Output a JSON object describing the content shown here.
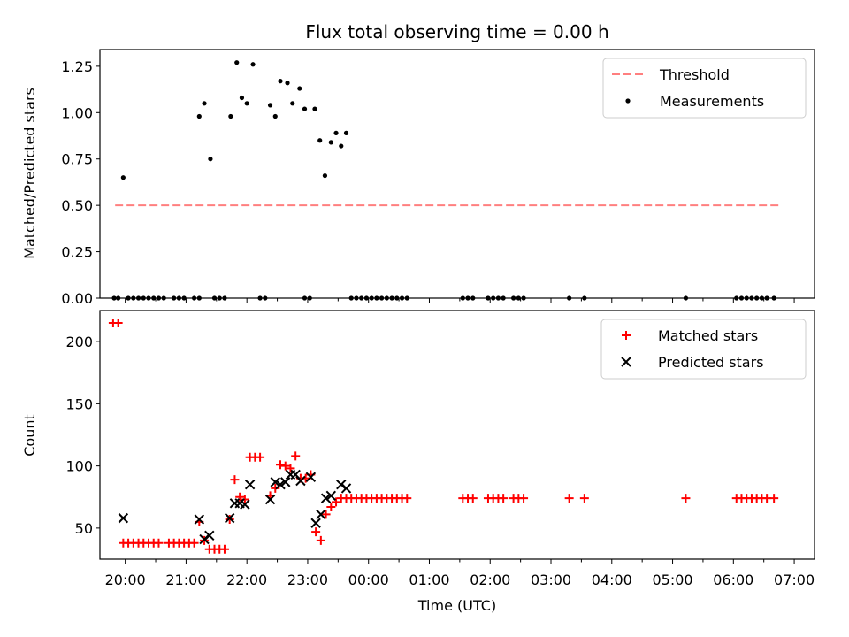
{
  "figure": {
    "title": "Flux total observing time = 0.00 h"
  },
  "chart_data": [
    {
      "type": "scatter",
      "panel": "top",
      "ylabel": "Matched/Predicted stars",
      "xlabel": "",
      "xlim": [
        "19:35",
        "07:20"
      ],
      "ylim": [
        0,
        1.34
      ],
      "yticks": [
        0.0,
        0.25,
        0.5,
        0.75,
        1.0,
        1.25
      ],
      "ytick_labels": [
        "0.00",
        "0.25",
        "0.50",
        "0.75",
        "1.00",
        "1.25"
      ],
      "xticks": [
        "20:00",
        "21:00",
        "22:00",
        "23:00",
        "00:00",
        "01:00",
        "02:00",
        "03:00",
        "04:00",
        "05:00",
        "06:00",
        "07:00"
      ],
      "legend": {
        "placement": "top-right",
        "entries": [
          "Threshold",
          "Measurements"
        ]
      },
      "threshold": {
        "name": "Threshold",
        "y": 0.5,
        "x_range": [
          "19:50",
          "06:45"
        ],
        "color": "#ff7f7f",
        "style": "dashed"
      },
      "series": [
        {
          "name": "Measurements",
          "color": "#000000",
          "points": [
            [
              "19:49",
              0
            ],
            [
              "19:53",
              0
            ],
            [
              "19:58",
              0.65
            ],
            [
              "20:03",
              0
            ],
            [
              "20:08",
              0
            ],
            [
              "20:13",
              0
            ],
            [
              "20:18",
              0
            ],
            [
              "20:23",
              0
            ],
            [
              "20:28",
              0
            ],
            [
              "20:33",
              0
            ],
            [
              "20:38",
              0
            ],
            [
              "20:48",
              0
            ],
            [
              "20:53",
              0
            ],
            [
              "20:58",
              0
            ],
            [
              "21:08",
              0
            ],
            [
              "21:13",
              0
            ],
            [
              "21:13",
              0.98
            ],
            [
              "21:18",
              1.05
            ],
            [
              "21:24",
              0.75
            ],
            [
              "21:28",
              0
            ],
            [
              "21:33",
              0
            ],
            [
              "21:38",
              0
            ],
            [
              "21:44",
              0.98
            ],
            [
              "21:50",
              1.27
            ],
            [
              "21:55",
              1.08
            ],
            [
              "22:00",
              1.05
            ],
            [
              "22:06",
              1.26
            ],
            [
              "22:13",
              0
            ],
            [
              "22:18",
              0
            ],
            [
              "22:23",
              1.04
            ],
            [
              "22:28",
              0.98
            ],
            [
              "22:33",
              1.17
            ],
            [
              "22:40",
              1.16
            ],
            [
              "22:45",
              1.05
            ],
            [
              "22:52",
              1.13
            ],
            [
              "22:57",
              1.02
            ],
            [
              "22:57",
              0
            ],
            [
              "23:02",
              0
            ],
            [
              "23:07",
              1.02
            ],
            [
              "23:12",
              0.85
            ],
            [
              "23:17",
              0.66
            ],
            [
              "23:23",
              0.84
            ],
            [
              "23:28",
              0.89
            ],
            [
              "23:33",
              0.82
            ],
            [
              "23:38",
              0.89
            ],
            [
              "23:43",
              0
            ],
            [
              "23:48",
              0
            ],
            [
              "23:53",
              0
            ],
            [
              "23:58",
              0
            ],
            [
              "00:03",
              0
            ],
            [
              "00:08",
              0
            ],
            [
              "00:13",
              0
            ],
            [
              "00:18",
              0
            ],
            [
              "00:23",
              0
            ],
            [
              "00:28",
              0
            ],
            [
              "00:33",
              0
            ],
            [
              "00:38",
              0
            ],
            [
              "01:33",
              0
            ],
            [
              "01:38",
              0
            ],
            [
              "01:43",
              0
            ],
            [
              "01:58",
              0
            ],
            [
              "02:03",
              0
            ],
            [
              "02:08",
              0
            ],
            [
              "02:13",
              0
            ],
            [
              "02:23",
              0
            ],
            [
              "02:28",
              0
            ],
            [
              "02:33",
              0
            ],
            [
              "03:18",
              0
            ],
            [
              "03:33",
              0
            ],
            [
              "05:13",
              0
            ],
            [
              "06:03",
              0
            ],
            [
              "06:08",
              0
            ],
            [
              "06:13",
              0
            ],
            [
              "06:18",
              0
            ],
            [
              "06:23",
              0
            ],
            [
              "06:28",
              0
            ],
            [
              "06:33",
              0
            ],
            [
              "06:40",
              0
            ]
          ]
        }
      ]
    },
    {
      "type": "scatter",
      "panel": "bottom",
      "ylabel": "Count",
      "xlabel": "Time (UTC)",
      "xlim": [
        "19:35",
        "07:20"
      ],
      "ylim": [
        25,
        225
      ],
      "yticks": [
        50,
        100,
        150,
        200
      ],
      "ytick_labels": [
        "50",
        "100",
        "150",
        "200"
      ],
      "xticks": [
        "20:00",
        "21:00",
        "22:00",
        "23:00",
        "00:00",
        "01:00",
        "02:00",
        "03:00",
        "04:00",
        "05:00",
        "06:00",
        "07:00"
      ],
      "legend": {
        "placement": "top-right",
        "entries": [
          "Matched stars",
          "Predicted stars"
        ]
      },
      "series": [
        {
          "name": "Matched stars",
          "marker": "+",
          "color": "#ff0000",
          "points": [
            [
              "19:48",
              215
            ],
            [
              "19:53",
              215
            ],
            [
              "19:58",
              38
            ],
            [
              "20:03",
              38
            ],
            [
              "20:08",
              38
            ],
            [
              "20:13",
              38
            ],
            [
              "20:18",
              38
            ],
            [
              "20:23",
              38
            ],
            [
              "20:28",
              38
            ],
            [
              "20:33",
              38
            ],
            [
              "20:43",
              38
            ],
            [
              "20:48",
              38
            ],
            [
              "20:53",
              38
            ],
            [
              "20:58",
              38
            ],
            [
              "21:03",
              38
            ],
            [
              "21:08",
              38
            ],
            [
              "21:13",
              55
            ],
            [
              "21:18",
              40
            ],
            [
              "21:23",
              33
            ],
            [
              "21:28",
              33
            ],
            [
              "21:33",
              33
            ],
            [
              "21:38",
              33
            ],
            [
              "21:43",
              57
            ],
            [
              "21:48",
              89
            ],
            [
              "21:53",
              75
            ],
            [
              "21:58",
              73
            ],
            [
              "22:03",
              107
            ],
            [
              "22:08",
              107
            ],
            [
              "22:13",
              107
            ],
            [
              "22:23",
              76
            ],
            [
              "22:28",
              82
            ],
            [
              "22:33",
              101
            ],
            [
              "22:38",
              100
            ],
            [
              "22:43",
              98
            ],
            [
              "22:48",
              108
            ],
            [
              "22:53",
              90
            ],
            [
              "22:58",
              90
            ],
            [
              "23:03",
              93
            ],
            [
              "23:08",
              47
            ],
            [
              "23:13",
              40
            ],
            [
              "23:18",
              61
            ],
            [
              "23:23",
              67
            ],
            [
              "23:28",
              71
            ],
            [
              "23:33",
              74
            ],
            [
              "23:38",
              74
            ],
            [
              "23:43",
              74
            ],
            [
              "23:48",
              74
            ],
            [
              "23:53",
              74
            ],
            [
              "23:58",
              74
            ],
            [
              "00:03",
              74
            ],
            [
              "00:08",
              74
            ],
            [
              "00:13",
              74
            ],
            [
              "00:18",
              74
            ],
            [
              "00:23",
              74
            ],
            [
              "00:28",
              74
            ],
            [
              "00:33",
              74
            ],
            [
              "00:38",
              74
            ],
            [
              "01:33",
              74
            ],
            [
              "01:38",
              74
            ],
            [
              "01:43",
              74
            ],
            [
              "01:58",
              74
            ],
            [
              "02:03",
              74
            ],
            [
              "02:08",
              74
            ],
            [
              "02:13",
              74
            ],
            [
              "02:23",
              74
            ],
            [
              "02:28",
              74
            ],
            [
              "02:33",
              74
            ],
            [
              "03:18",
              74
            ],
            [
              "03:33",
              74
            ],
            [
              "05:13",
              74
            ],
            [
              "06:03",
              74
            ],
            [
              "06:08",
              74
            ],
            [
              "06:13",
              74
            ],
            [
              "06:18",
              74
            ],
            [
              "06:23",
              74
            ],
            [
              "06:28",
              74
            ],
            [
              "06:33",
              74
            ],
            [
              "06:40",
              74
            ]
          ]
        },
        {
          "name": "Predicted stars",
          "marker": "x",
          "color": "#000000",
          "points": [
            [
              "19:58",
              58
            ],
            [
              "21:13",
              57
            ],
            [
              "21:18",
              41
            ],
            [
              "21:23",
              44
            ],
            [
              "21:43",
              58
            ],
            [
              "21:48",
              70
            ],
            [
              "21:53",
              70
            ],
            [
              "21:58",
              69
            ],
            [
              "22:03",
              85
            ],
            [
              "22:23",
              73
            ],
            [
              "22:28",
              87
            ],
            [
              "22:33",
              85
            ],
            [
              "22:38",
              87
            ],
            [
              "22:43",
              93
            ],
            [
              "22:48",
              93
            ],
            [
              "22:53",
              88
            ],
            [
              "23:03",
              91
            ],
            [
              "23:08",
              54
            ],
            [
              "23:13",
              61
            ],
            [
              "23:18",
              74
            ],
            [
              "23:23",
              76
            ],
            [
              "23:33",
              85
            ],
            [
              "23:38",
              82
            ]
          ]
        }
      ]
    }
  ]
}
